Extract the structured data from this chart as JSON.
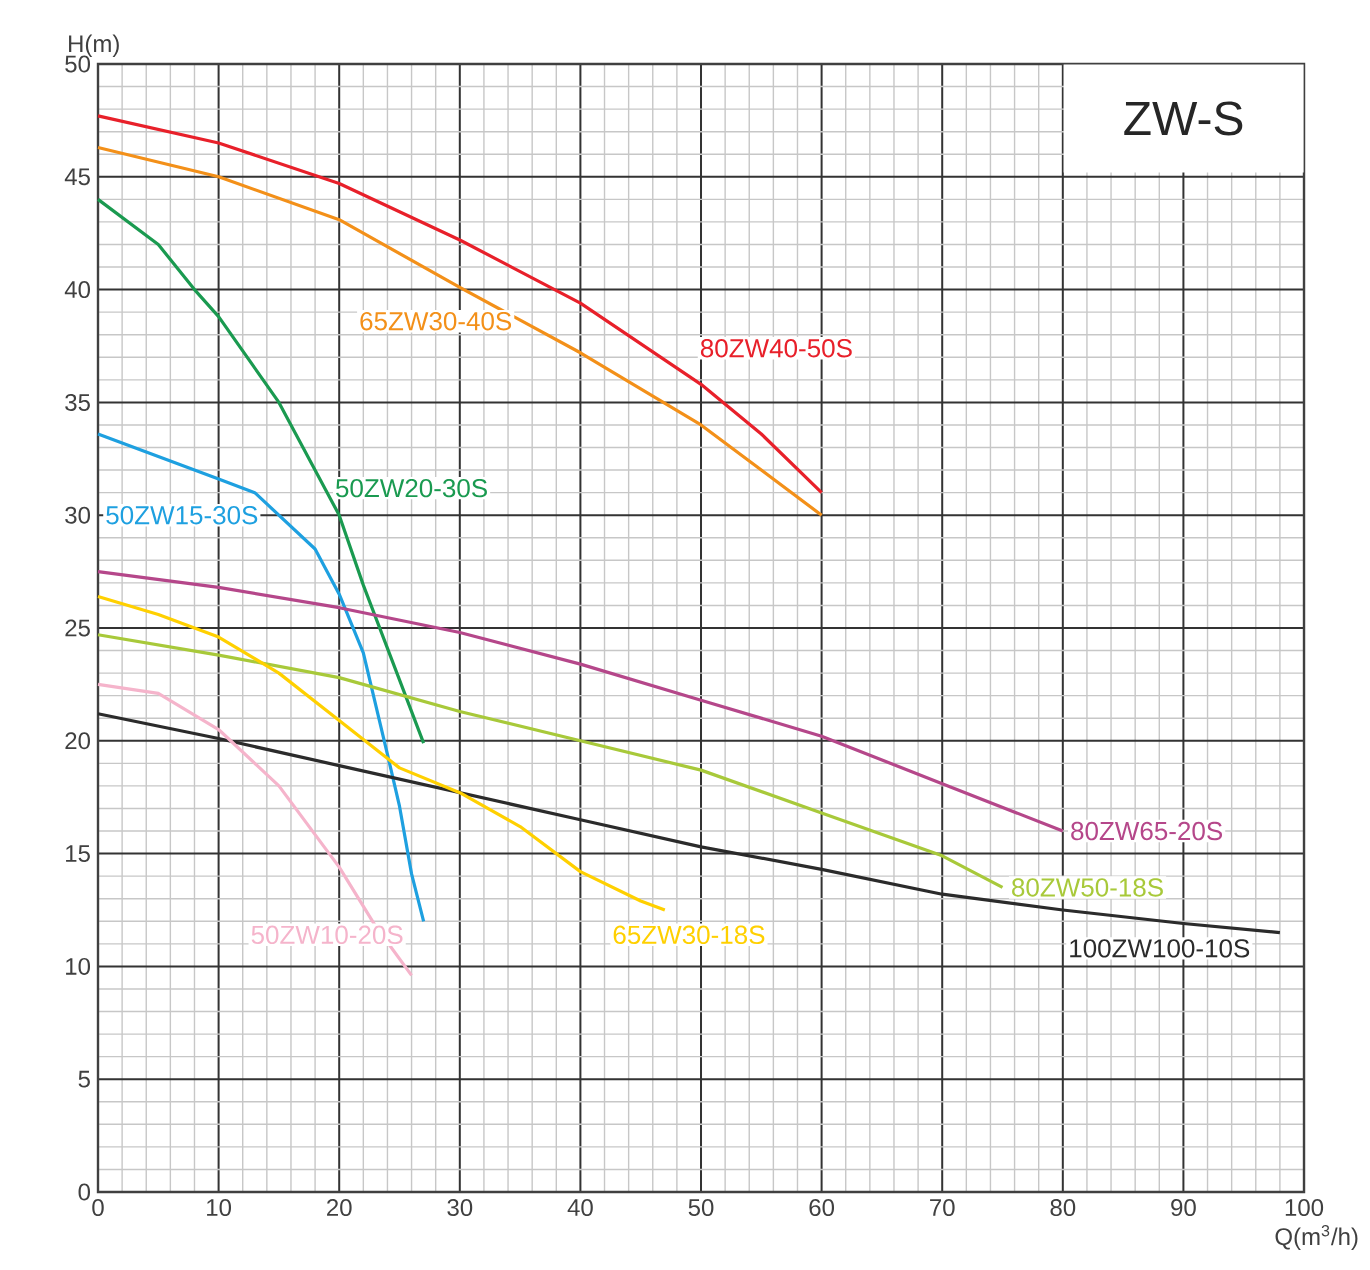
{
  "chart_data": {
    "type": "line",
    "title": "ZW-S",
    "xlabel": "Q(m$^{3}$/h)",
    "ylabel": "H(m)",
    "xlim": [
      0,
      100
    ],
    "xticks": [
      0,
      10,
      20,
      30,
      40,
      50,
      60,
      70,
      80,
      90,
      100
    ],
    "ylim": [
      0,
      50
    ],
    "yticks": [
      0,
      5,
      10,
      15,
      20,
      25,
      30,
      35,
      40,
      45,
      50
    ],
    "grid": true,
    "legend": false,
    "marker": "none",
    "line_style": "solid",
    "series": [
      {
        "name": "80ZW40-50S",
        "color": "#e8202a",
        "x": [
          0,
          10,
          20,
          30,
          40,
          50,
          55,
          60
        ],
        "values": [
          47.7,
          46.5,
          44.7,
          42.2,
          39.4,
          35.8,
          33.6,
          31.0
        ]
      },
      {
        "name": "65ZW30-40S",
        "color": "#f39019",
        "x": [
          0,
          10,
          20,
          30,
          40,
          50,
          55,
          60
        ],
        "values": [
          46.3,
          45.0,
          43.1,
          40.1,
          37.2,
          34.0,
          32.0,
          30.0
        ]
      },
      {
        "name": "50ZW20-30S",
        "color": "#1a9a50",
        "x": [
          0,
          5,
          8,
          10,
          15,
          20,
          22,
          25,
          27
        ],
        "values": [
          44.0,
          42.0,
          40.0,
          38.8,
          35.0,
          30.0,
          26.9,
          22.7,
          19.9
        ]
      },
      {
        "name": "50ZW15-30S",
        "color": "#1ea0e0",
        "x": [
          0,
          5,
          10,
          13,
          18,
          20,
          22,
          24,
          25,
          26,
          27
        ],
        "values": [
          33.6,
          32.6,
          31.6,
          31.0,
          28.5,
          26.5,
          23.9,
          19.4,
          17.1,
          14.1,
          12.0
        ]
      },
      {
        "name": "80ZW65-20S",
        "color": "#b5478a",
        "x": [
          0,
          10,
          20,
          30,
          40,
          50,
          60,
          70,
          80
        ],
        "values": [
          27.5,
          26.8,
          25.9,
          24.8,
          23.4,
          21.8,
          20.2,
          18.1,
          16.0
        ]
      },
      {
        "name": "80ZW50-18S",
        "color": "#a8c93a",
        "x": [
          0,
          10,
          20,
          30,
          40,
          50,
          60,
          70,
          75
        ],
        "values": [
          24.7,
          23.8,
          22.8,
          21.3,
          20.0,
          18.7,
          16.8,
          14.9,
          13.5
        ]
      },
      {
        "name": "100ZW100-10S",
        "color": "#2b2b2b",
        "x": [
          0,
          10,
          20,
          30,
          40,
          50,
          60,
          70,
          80,
          90,
          98
        ],
        "values": [
          21.2,
          20.1,
          18.9,
          17.7,
          16.5,
          15.3,
          14.3,
          13.2,
          12.5,
          11.9,
          11.5
        ]
      },
      {
        "name": "65ZW30-18S",
        "color": "#ffd000",
        "x": [
          0,
          5,
          10,
          15,
          20,
          25,
          30,
          35,
          40,
          45,
          47
        ],
        "values": [
          26.4,
          25.6,
          24.6,
          23.0,
          20.9,
          18.8,
          17.7,
          16.2,
          14.2,
          12.9,
          12.5
        ]
      },
      {
        "name": "50ZW10-20S",
        "color": "#f5b4cb",
        "x": [
          0,
          5,
          10,
          15,
          20,
          23,
          26
        ],
        "values": [
          22.5,
          22.1,
          20.5,
          18.0,
          14.4,
          11.8,
          9.6
        ]
      }
    ]
  }
}
